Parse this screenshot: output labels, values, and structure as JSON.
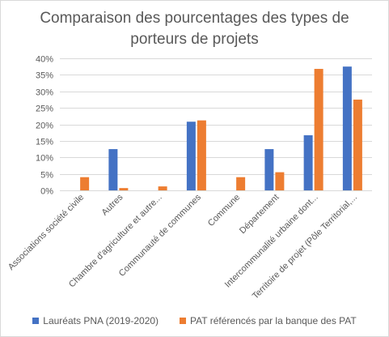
{
  "chart_data": {
    "type": "bar",
    "title_lines": [
      "Comparaison des pourcentages des types de",
      "porteurs de projets"
    ],
    "xlabel": "",
    "ylabel": "",
    "ylim": [
      0,
      40
    ],
    "yticks": [
      0,
      5,
      10,
      15,
      20,
      25,
      30,
      35,
      40
    ],
    "ytick_labels": [
      "0%",
      "5%",
      "10%",
      "15%",
      "20%",
      "25%",
      "30%",
      "35%",
      "40%"
    ],
    "grid": true,
    "legend_position": "bottom",
    "categories": [
      "Associations société civile",
      "Autres",
      "Chambre d'agriculture et autre...",
      "Communauté de communes",
      "Commune",
      "Département",
      "Intercommunalité urbaine dont...",
      "Territoire de projet (Pôle Territorial,..."
    ],
    "series": [
      {
        "name": "Lauréats PNA (2019-2020)",
        "color": "#4472c4",
        "values": [
          0,
          12.5,
          0,
          20.8,
          0,
          12.5,
          16.7,
          37.5
        ]
      },
      {
        "name": "PAT référencés par la banque des PAT",
        "color": "#ed7d31",
        "values": [
          4.0,
          0.7,
          1.2,
          21.2,
          4.0,
          5.5,
          36.8,
          27.5
        ]
      }
    ]
  }
}
